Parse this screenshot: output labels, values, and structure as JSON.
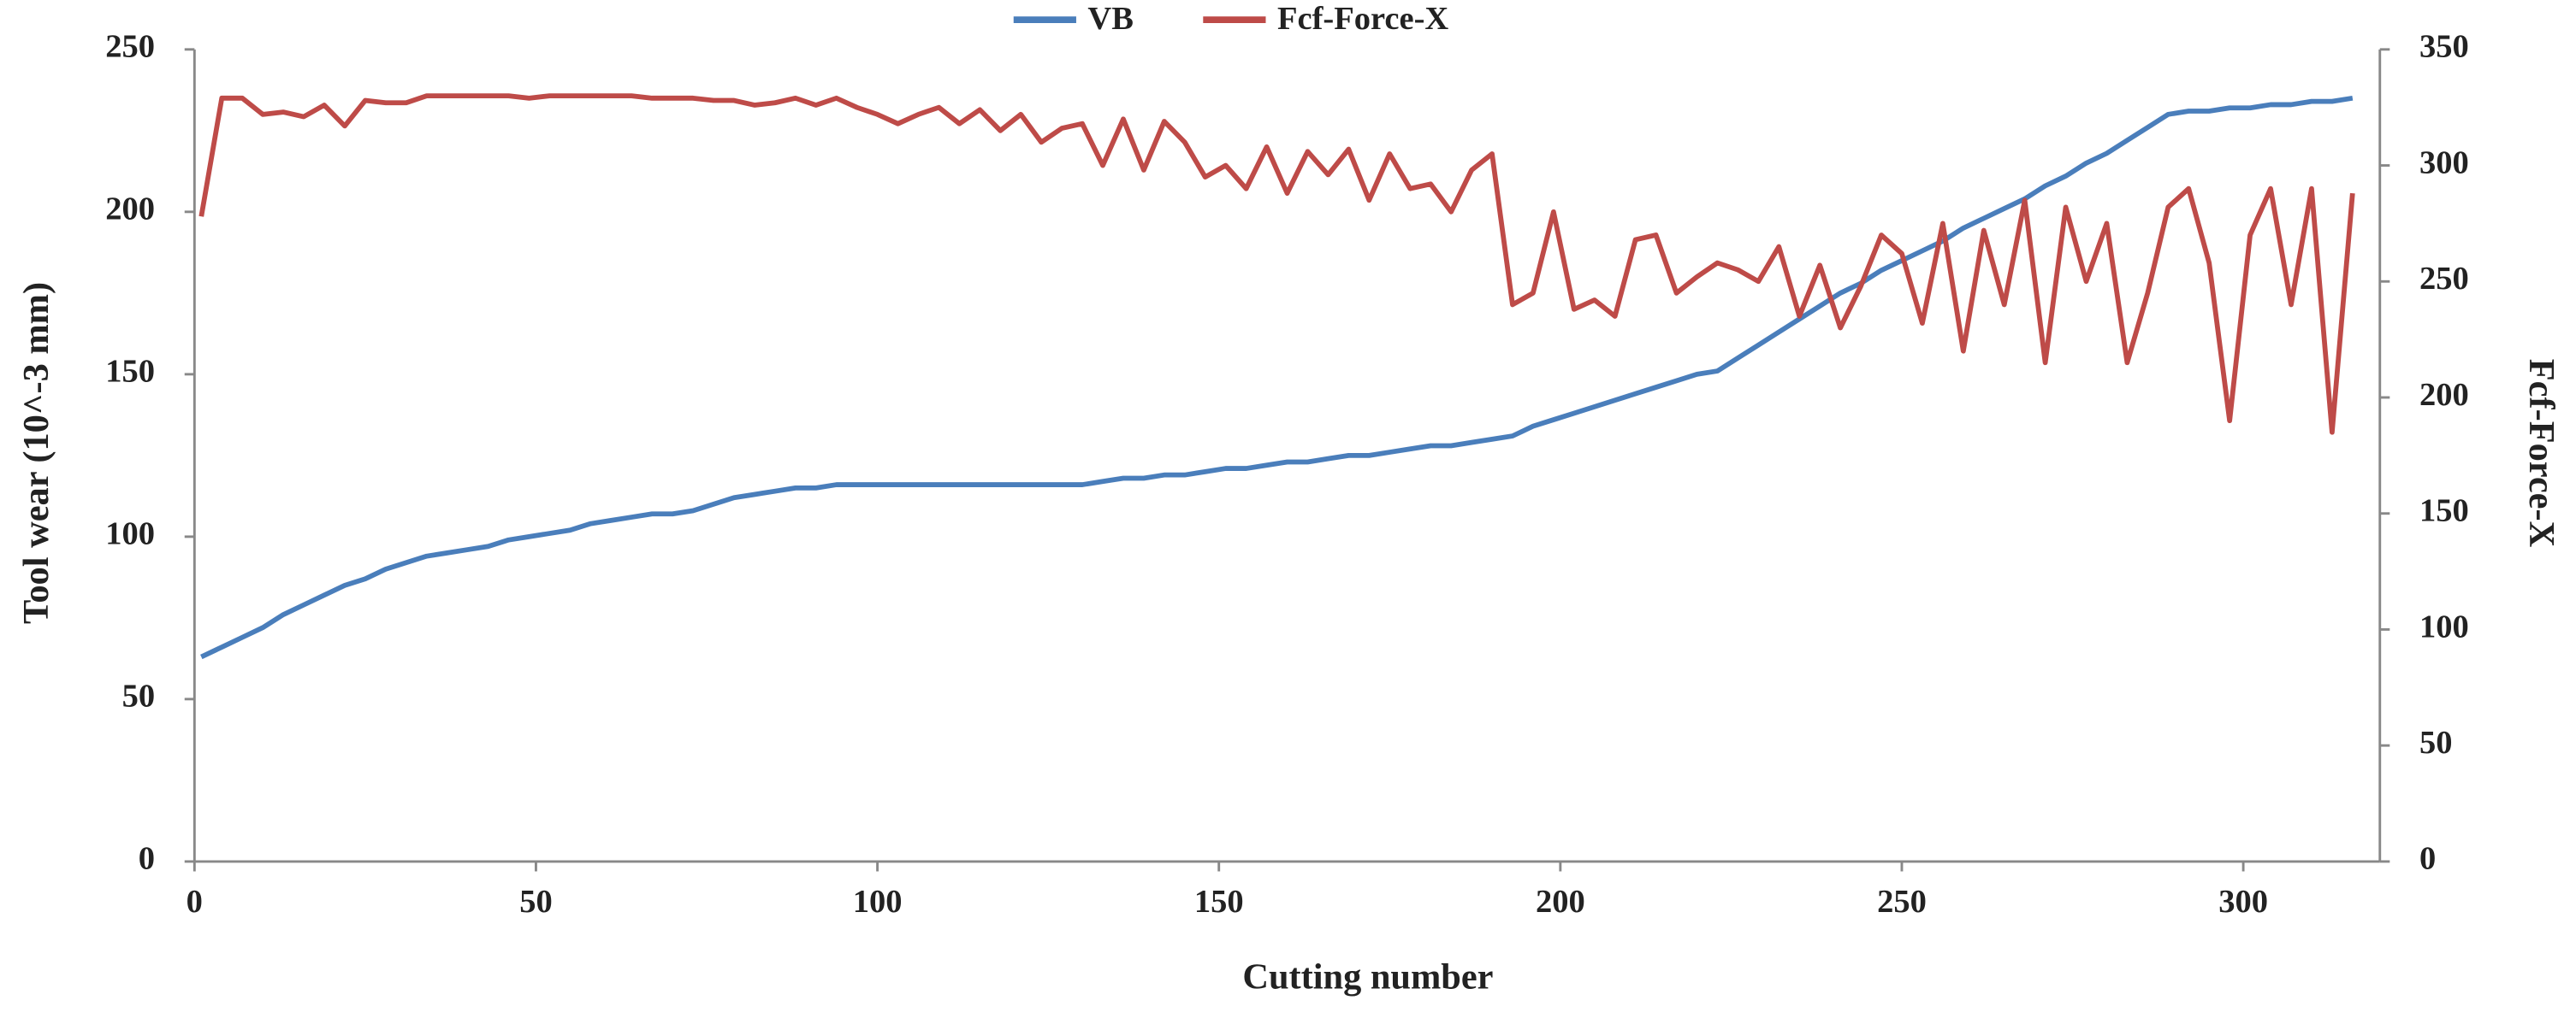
{
  "chart_data": {
    "type": "line",
    "xlabel": "Cutting number",
    "ylabel": "Tool wear (10^-3 mm)",
    "y2label": "Fcf-Force-X",
    "x": [
      1,
      4,
      7,
      10,
      13,
      16,
      19,
      22,
      25,
      28,
      31,
      34,
      37,
      40,
      43,
      46,
      49,
      52,
      55,
      58,
      61,
      64,
      67,
      70,
      73,
      76,
      79,
      82,
      85,
      88,
      91,
      94,
      97,
      100,
      103,
      106,
      109,
      112,
      115,
      118,
      121,
      124,
      127,
      130,
      133,
      136,
      139,
      142,
      145,
      148,
      151,
      154,
      157,
      160,
      163,
      166,
      169,
      172,
      175,
      178,
      181,
      184,
      187,
      190,
      193,
      196,
      199,
      202,
      205,
      208,
      211,
      214,
      217,
      220,
      223,
      226,
      229,
      232,
      235,
      238,
      241,
      244,
      247,
      250,
      253,
      256,
      259,
      262,
      265,
      268,
      271,
      274,
      277,
      280,
      283,
      286,
      289,
      292,
      295,
      298,
      301,
      304,
      307,
      310,
      313,
      316
    ],
    "series": [
      {
        "name": "VB",
        "color": "#4a7ebb",
        "axis": "y",
        "values": [
          63,
          66,
          69,
          72,
          76,
          79,
          82,
          85,
          87,
          90,
          92,
          94,
          95,
          96,
          97,
          99,
          100,
          101,
          102,
          104,
          105,
          106,
          107,
          107,
          108,
          110,
          112,
          113,
          114,
          115,
          115,
          116,
          116,
          116,
          116,
          116,
          116,
          116,
          116,
          116,
          116,
          116,
          116,
          116,
          117,
          118,
          118,
          119,
          119,
          120,
          121,
          121,
          122,
          123,
          123,
          124,
          125,
          125,
          126,
          127,
          128,
          128,
          129,
          130,
          131,
          134,
          136,
          138,
          140,
          142,
          144,
          146,
          148,
          150,
          151,
          155,
          159,
          163,
          167,
          171,
          175,
          178,
          182,
          185,
          188,
          191,
          195,
          198,
          201,
          204,
          208,
          211,
          215,
          218,
          222,
          226,
          230,
          231,
          231,
          232,
          232,
          233,
          233,
          234,
          234,
          235
        ]
      },
      {
        "name": "Fcf-Force-X",
        "color": "#be4b48",
        "axis": "y2",
        "values": [
          278,
          329,
          329,
          322,
          323,
          321,
          326,
          317,
          328,
          327,
          327,
          330,
          330,
          330,
          330,
          330,
          329,
          330,
          330,
          330,
          330,
          330,
          329,
          329,
          329,
          328,
          328,
          326,
          327,
          329,
          326,
          329,
          325,
          322,
          318,
          322,
          325,
          318,
          324,
          315,
          322,
          310,
          316,
          318,
          300,
          320,
          298,
          319,
          310,
          295,
          300,
          290,
          308,
          288,
          306,
          296,
          307,
          285,
          305,
          290,
          292,
          280,
          298,
          305,
          240,
          245,
          280,
          238,
          242,
          235,
          268,
          270,
          245,
          252,
          258,
          255,
          250,
          265,
          235,
          257,
          230,
          248,
          270,
          262,
          232,
          275,
          220,
          272,
          240,
          285,
          215,
          282,
          250,
          275,
          215,
          245,
          282,
          290,
          258,
          190,
          270,
          290,
          240,
          290,
          185,
          288
        ]
      }
    ],
    "xlim": [
      0,
      320
    ],
    "xticks": [
      0,
      50,
      100,
      150,
      200,
      250,
      300
    ],
    "ylim": [
      0,
      250
    ],
    "yticks": [
      0,
      50,
      100,
      150,
      200,
      250
    ],
    "y2lim": [
      0,
      350
    ],
    "y2ticks": [
      0,
      50,
      100,
      150,
      200,
      250,
      300,
      350
    ],
    "legend": "top",
    "grid": false
  }
}
